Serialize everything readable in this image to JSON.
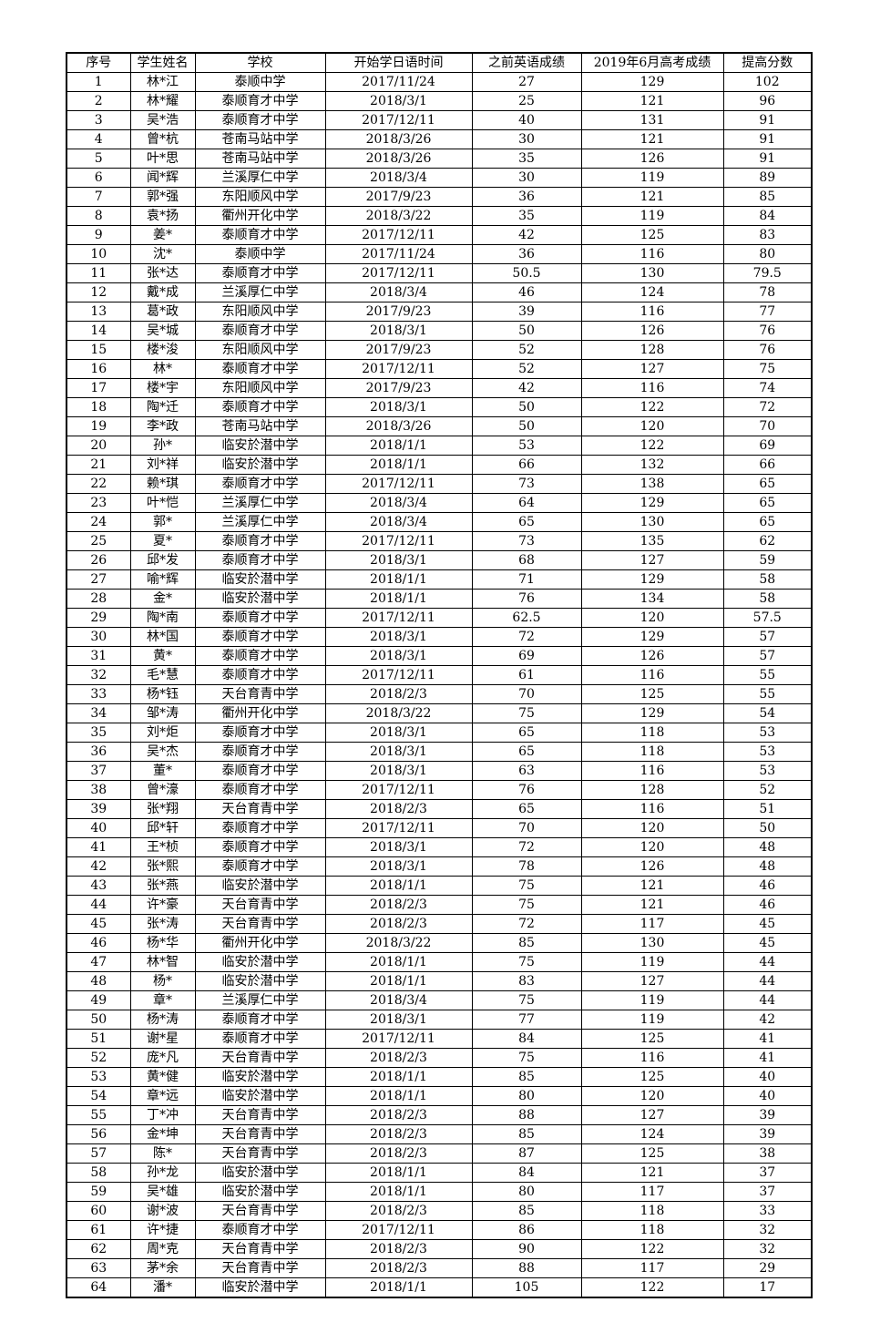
{
  "colors": {
    "page_background": "#ffffff",
    "table_border": "#000000",
    "text": "#000000"
  },
  "table": {
    "headers": [
      "序号",
      "学生姓名",
      "学校",
      "开始学日语时间",
      "之前英语成绩",
      "2019年6月高考成绩",
      "提高分数"
    ],
    "rows": [
      [
        "1",
        "林*江",
        "泰顺中学",
        "2017/11/24",
        "27",
        "129",
        "102"
      ],
      [
        "2",
        "林*耀",
        "泰顺育才中学",
        "2018/3/1",
        "25",
        "121",
        "96"
      ],
      [
        "3",
        "吴*浩",
        "泰顺育才中学",
        "2017/12/11",
        "40",
        "131",
        "91"
      ],
      [
        "4",
        "曾*杭",
        "苍南马站中学",
        "2018/3/26",
        "30",
        "121",
        "91"
      ],
      [
        "5",
        "叶*思",
        "苍南马站中学",
        "2018/3/26",
        "35",
        "126",
        "91"
      ],
      [
        "6",
        "闻*辉",
        "兰溪厚仁中学",
        "2018/3/4",
        "30",
        "119",
        "89"
      ],
      [
        "7",
        "郭*强",
        "东阳顺风中学",
        "2017/9/23",
        "36",
        "121",
        "85"
      ],
      [
        "8",
        "袁*扬",
        "衢州开化中学",
        "2018/3/22",
        "35",
        "119",
        "84"
      ],
      [
        "9",
        "姜*",
        "泰顺育才中学",
        "2017/12/11",
        "42",
        "125",
        "83"
      ],
      [
        "10",
        "沈*",
        "泰顺中学",
        "2017/11/24",
        "36",
        "116",
        "80"
      ],
      [
        "11",
        "张*达",
        "泰顺育才中学",
        "2017/12/11",
        "50.5",
        "130",
        "79.5"
      ],
      [
        "12",
        "戴*成",
        "兰溪厚仁中学",
        "2018/3/4",
        "46",
        "124",
        "78"
      ],
      [
        "13",
        "葛*政",
        "东阳顺风中学",
        "2017/9/23",
        "39",
        "116",
        "77"
      ],
      [
        "14",
        "吴*城",
        "泰顺育才中学",
        "2018/3/1",
        "50",
        "126",
        "76"
      ],
      [
        "15",
        "楼*浚",
        "东阳顺风中学",
        "2017/9/23",
        "52",
        "128",
        "76"
      ],
      [
        "16",
        "林*",
        "泰顺育才中学",
        "2017/12/11",
        "52",
        "127",
        "75"
      ],
      [
        "17",
        "楼*宇",
        "东阳顺风中学",
        "2017/9/23",
        "42",
        "116",
        "74"
      ],
      [
        "18",
        "陶*迁",
        "泰顺育才中学",
        "2018/3/1",
        "50",
        "122",
        "72"
      ],
      [
        "19",
        "李*政",
        "苍南马站中学",
        "2018/3/26",
        "50",
        "120",
        "70"
      ],
      [
        "20",
        "孙*",
        "临安於潜中学",
        "2018/1/1",
        "53",
        "122",
        "69"
      ],
      [
        "21",
        "刘*祥",
        "临安於潜中学",
        "2018/1/1",
        "66",
        "132",
        "66"
      ],
      [
        "22",
        "赖*琪",
        "泰顺育才中学",
        "2017/12/11",
        "73",
        "138",
        "65"
      ],
      [
        "23",
        "叶*恺",
        "兰溪厚仁中学",
        "2018/3/4",
        "64",
        "129",
        "65"
      ],
      [
        "24",
        "郭*",
        "兰溪厚仁中学",
        "2018/3/4",
        "65",
        "130",
        "65"
      ],
      [
        "25",
        "夏*",
        "泰顺育才中学",
        "2017/12/11",
        "73",
        "135",
        "62"
      ],
      [
        "26",
        "邱*发",
        "泰顺育才中学",
        "2018/3/1",
        "68",
        "127",
        "59"
      ],
      [
        "27",
        "喻*辉",
        "临安於潜中学",
        "2018/1/1",
        "71",
        "129",
        "58"
      ],
      [
        "28",
        "金*",
        "临安於潜中学",
        "2018/1/1",
        "76",
        "134",
        "58"
      ],
      [
        "29",
        "陶*南",
        "泰顺育才中学",
        "2017/12/11",
        "62.5",
        "120",
        "57.5"
      ],
      [
        "30",
        "林*国",
        "泰顺育才中学",
        "2018/3/1",
        "72",
        "129",
        "57"
      ],
      [
        "31",
        "黄*",
        "泰顺育才中学",
        "2018/3/1",
        "69",
        "126",
        "57"
      ],
      [
        "32",
        "毛*慧",
        "泰顺育才中学",
        "2017/12/11",
        "61",
        "116",
        "55"
      ],
      [
        "33",
        "杨*钰",
        "天台育青中学",
        "2018/2/3",
        "70",
        "125",
        "55"
      ],
      [
        "34",
        "邹*涛",
        "衢州开化中学",
        "2018/3/22",
        "75",
        "129",
        "54"
      ],
      [
        "35",
        "刘*炬",
        "泰顺育才中学",
        "2018/3/1",
        "65",
        "118",
        "53"
      ],
      [
        "36",
        "吴*杰",
        "泰顺育才中学",
        "2018/3/1",
        "65",
        "118",
        "53"
      ],
      [
        "37",
        "董*",
        "泰顺育才中学",
        "2018/3/1",
        "63",
        "116",
        "53"
      ],
      [
        "38",
        "曾*濠",
        "泰顺育才中学",
        "2017/12/11",
        "76",
        "128",
        "52"
      ],
      [
        "39",
        "张*翔",
        "天台育青中学",
        "2018/2/3",
        "65",
        "116",
        "51"
      ],
      [
        "40",
        "邱*轩",
        "泰顺育才中学",
        "2017/12/11",
        "70",
        "120",
        "50"
      ],
      [
        "41",
        "王*桢",
        "泰顺育才中学",
        "2018/3/1",
        "72",
        "120",
        "48"
      ],
      [
        "42",
        "张*熙",
        "泰顺育才中学",
        "2018/3/1",
        "78",
        "126",
        "48"
      ],
      [
        "43",
        "张*燕",
        "临安於潜中学",
        "2018/1/1",
        "75",
        "121",
        "46"
      ],
      [
        "44",
        "许*豪",
        "天台育青中学",
        "2018/2/3",
        "75",
        "121",
        "46"
      ],
      [
        "45",
        "张*涛",
        "天台育青中学",
        "2018/2/3",
        "72",
        "117",
        "45"
      ],
      [
        "46",
        "杨*华",
        "衢州开化中学",
        "2018/3/22",
        "85",
        "130",
        "45"
      ],
      [
        "47",
        "林*智",
        "临安於潜中学",
        "2018/1/1",
        "75",
        "119",
        "44"
      ],
      [
        "48",
        "杨*",
        "临安於潜中学",
        "2018/1/1",
        "83",
        "127",
        "44"
      ],
      [
        "49",
        "章*",
        "兰溪厚仁中学",
        "2018/3/4",
        "75",
        "119",
        "44"
      ],
      [
        "50",
        "杨*涛",
        "泰顺育才中学",
        "2018/3/1",
        "77",
        "119",
        "42"
      ],
      [
        "51",
        "谢*星",
        "泰顺育才中学",
        "2017/12/11",
        "84",
        "125",
        "41"
      ],
      [
        "52",
        "庞*凡",
        "天台育青中学",
        "2018/2/3",
        "75",
        "116",
        "41"
      ],
      [
        "53",
        "黄*健",
        "临安於潜中学",
        "2018/1/1",
        "85",
        "125",
        "40"
      ],
      [
        "54",
        "章*远",
        "临安於潜中学",
        "2018/1/1",
        "80",
        "120",
        "40"
      ],
      [
        "55",
        "丁*冲",
        "天台育青中学",
        "2018/2/3",
        "88",
        "127",
        "39"
      ],
      [
        "56",
        "金*坤",
        "天台育青中学",
        "2018/2/3",
        "85",
        "124",
        "39"
      ],
      [
        "57",
        "陈*",
        "天台育青中学",
        "2018/2/3",
        "87",
        "125",
        "38"
      ],
      [
        "58",
        "孙*龙",
        "临安於潜中学",
        "2018/1/1",
        "84",
        "121",
        "37"
      ],
      [
        "59",
        "吴*雄",
        "临安於潜中学",
        "2018/1/1",
        "80",
        "117",
        "37"
      ],
      [
        "60",
        "谢*波",
        "天台育青中学",
        "2018/2/3",
        "85",
        "118",
        "33"
      ],
      [
        "61",
        "许*捷",
        "泰顺育才中学",
        "2017/12/11",
        "86",
        "118",
        "32"
      ],
      [
        "62",
        "周*克",
        "天台育青中学",
        "2018/2/3",
        "90",
        "122",
        "32"
      ],
      [
        "63",
        "茅*余",
        "天台育青中学",
        "2018/2/3",
        "88",
        "117",
        "29"
      ],
      [
        "64",
        "潘*",
        "临安於潜中学",
        "2018/1/1",
        "105",
        "122",
        "17"
      ]
    ]
  }
}
